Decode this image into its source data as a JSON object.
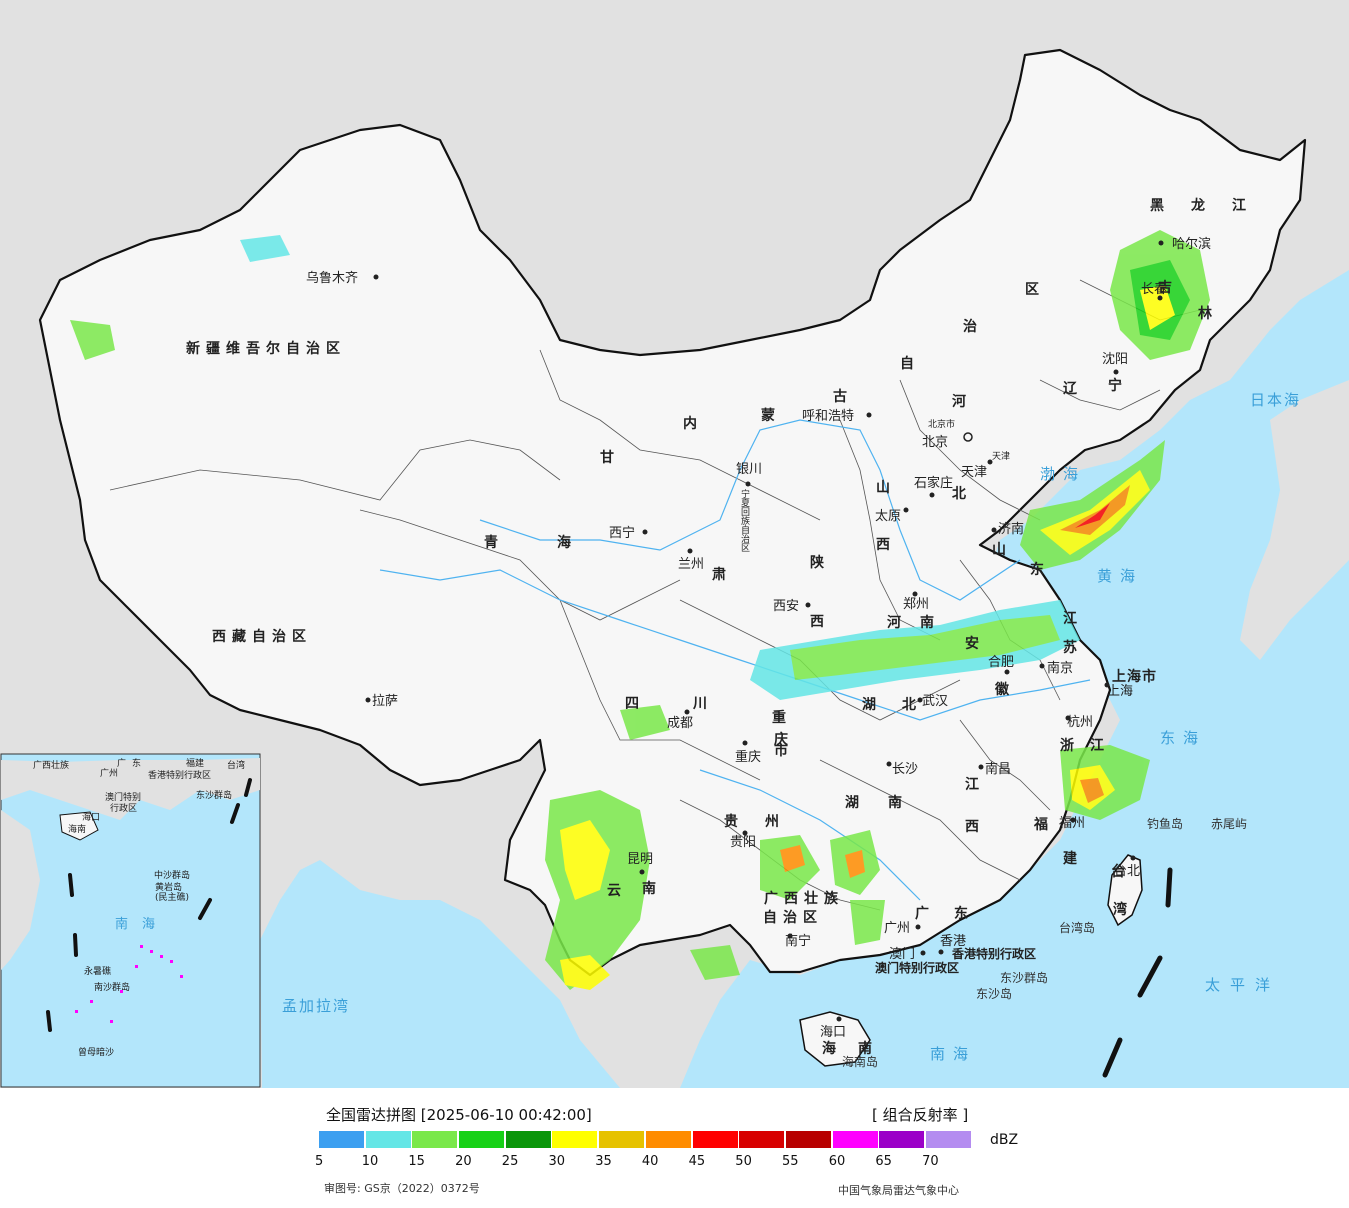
{
  "title": "全国雷达拼图 [2025-06-10 00:42:00]",
  "product": "[ 组合反射率 ]",
  "legend": {
    "unit": "dBZ",
    "ticks": [
      "5",
      "10",
      "15",
      "20",
      "25",
      "30",
      "35",
      "40",
      "45",
      "50",
      "55",
      "60",
      "65",
      "70"
    ],
    "colors": [
      "#3c9ff0",
      "#64e6e6",
      "#7ae84a",
      "#17d117",
      "#0a960a",
      "#ffff00",
      "#e6c200",
      "#ff8c00",
      "#ff0000",
      "#d80000",
      "#b80000",
      "#ff00ff",
      "#9b00c8",
      "#b48cf0"
    ]
  },
  "footer": {
    "approval": "审图号: GS京（2022）0372号",
    "credit": "中国气象局雷达气象中心"
  },
  "colors": {
    "sea": "#b3e6fb",
    "land_outside": "#e1e1e1",
    "china_land": "#f7f7f7",
    "border": "#111111"
  },
  "map": {
    "provinces": [
      "新疆维吾尔自治区",
      "西藏自治区",
      "青",
      "海",
      "甘",
      "肃",
      "内",
      "蒙",
      "古",
      "自",
      "治",
      "区",
      "黑",
      "龙",
      "江",
      "吉",
      "林",
      "辽",
      "宁",
      "河",
      "北",
      "山",
      "西",
      "陕",
      "西",
      "四",
      "川",
      "重",
      "庆",
      "市",
      "贵",
      "州",
      "云",
      "南",
      "湖",
      "南",
      "湖",
      "北",
      "广西壮族",
      "自治区",
      "广",
      "东",
      "江",
      "西",
      "福",
      "建",
      "浙",
      "江",
      "安",
      "徽",
      "江",
      "苏",
      "山",
      "东",
      "河",
      "南",
      "上海市",
      "海",
      "南",
      "台",
      "湾",
      "宁夏回族自治区"
    ],
    "cities": [
      "乌鲁木齐",
      "拉萨",
      "西宁",
      "兰州",
      "银川",
      "呼和浩特",
      "北京",
      "北京市",
      "天津",
      "天津",
      "石家庄",
      "太原",
      "济南",
      "郑州",
      "西安",
      "成都",
      "重庆",
      "贵阳",
      "昆明",
      "南宁",
      "长沙",
      "武汉",
      "南昌",
      "合肥",
      "南京",
      "上海",
      "杭州",
      "福州",
      "台北",
      "广州",
      "香港",
      "澳门",
      "沈阳",
      "长春",
      "哈尔滨",
      "海口"
    ],
    "special_regions": [
      "香港特别行政区",
      "澳门特别行政区"
    ],
    "seas": [
      "渤海",
      "黄海",
      "东海",
      "南海",
      "日本海",
      "太平洋",
      "孟加拉湾"
    ],
    "islands": [
      "钓鱼岛",
      "赤尾屿",
      "台湾岛",
      "东沙群岛",
      "东沙岛",
      "海南岛"
    ],
    "inset": {
      "labels": [
        "广西壮族",
        "广东",
        "福建",
        "台湾",
        "广州",
        "香港特别行政区",
        "东沙群岛",
        "澳门特别",
        "行政区",
        "海口",
        "海南",
        "中沙群岛",
        "黄岩岛",
        "(民主礁)",
        "南海",
        "永暑礁",
        "南沙群岛",
        "曾母暗沙"
      ]
    }
  }
}
